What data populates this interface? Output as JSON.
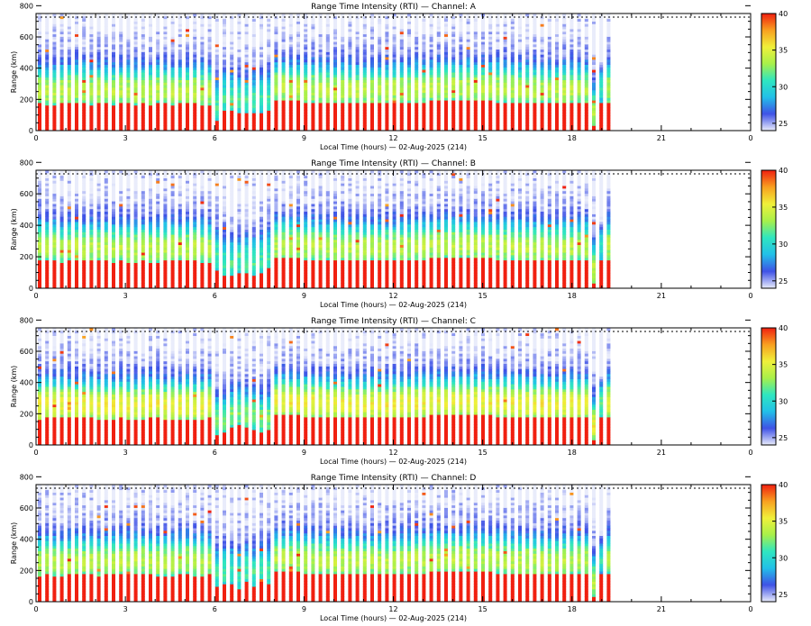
{
  "colorbar": {
    "ticks": [
      25,
      30,
      35,
      40
    ],
    "range": [
      24,
      40
    ],
    "palette": [
      "#e9ecfb",
      "#3f52e6",
      "#22c0e8",
      "#2fe6c0",
      "#a8f04a",
      "#f0f03a",
      "#f8a020",
      "#f02010"
    ]
  },
  "chart_data": [
    {
      "type": "heatmap",
      "title": "Range Time Intensity (RTI) — Channel: A",
      "xlabel": "Local Time (hours) — 02-Aug-2025 (214)",
      "ylabel": "Range (km)",
      "xticks": [
        "0",
        "3",
        "6",
        "9",
        "12",
        "15",
        "18",
        "21",
        "0"
      ],
      "yticks": [
        "0",
        "200",
        "400",
        "600",
        "800"
      ],
      "xlim": [
        0,
        24
      ],
      "ylim": [
        0,
        750
      ],
      "data_extent_hours": [
        0,
        19.5
      ],
      "value_range": [
        24,
        40
      ]
    },
    {
      "type": "heatmap",
      "title": "Range Time Intensity (RTI) — Channel: B",
      "xlabel": "Local Time (hours) — 02-Aug-2025 (214)",
      "ylabel": "Range (km)",
      "xticks": [
        "0",
        "3",
        "6",
        "9",
        "12",
        "15",
        "18",
        "21",
        "0"
      ],
      "yticks": [
        "0",
        "200",
        "400",
        "600",
        "800"
      ],
      "xlim": [
        0,
        24
      ],
      "ylim": [
        0,
        750
      ],
      "data_extent_hours": [
        0,
        19.5
      ],
      "value_range": [
        24,
        40
      ]
    },
    {
      "type": "heatmap",
      "title": "Range Time Intensity (RTI) — Channel: C",
      "xlabel": "Local Time (hours) — 02-Aug-2025 (214)",
      "ylabel": "Range (km)",
      "xticks": [
        "0",
        "3",
        "6",
        "9",
        "12",
        "15",
        "18",
        "21",
        "0"
      ],
      "yticks": [
        "0",
        "200",
        "400",
        "600",
        "800"
      ],
      "xlim": [
        0,
        24
      ],
      "ylim": [
        0,
        750
      ],
      "data_extent_hours": [
        0,
        19.5
      ],
      "value_range": [
        24,
        40
      ]
    },
    {
      "type": "heatmap",
      "title": "Range Time Intensity (RTI) — Channel: D",
      "xlabel": "Local Time (hours) — 02-Aug-2025 (214)",
      "ylabel": "Range (km)",
      "xticks": [
        "0",
        "3",
        "6",
        "9",
        "12",
        "15",
        "18",
        "21",
        "0"
      ],
      "yticks": [
        "0",
        "200",
        "400",
        "600",
        "800"
      ],
      "xlim": [
        0,
        24
      ],
      "ylim": [
        0,
        750
      ],
      "data_extent_hours": [
        0,
        19.5
      ],
      "value_range": [
        24,
        40
      ]
    }
  ]
}
